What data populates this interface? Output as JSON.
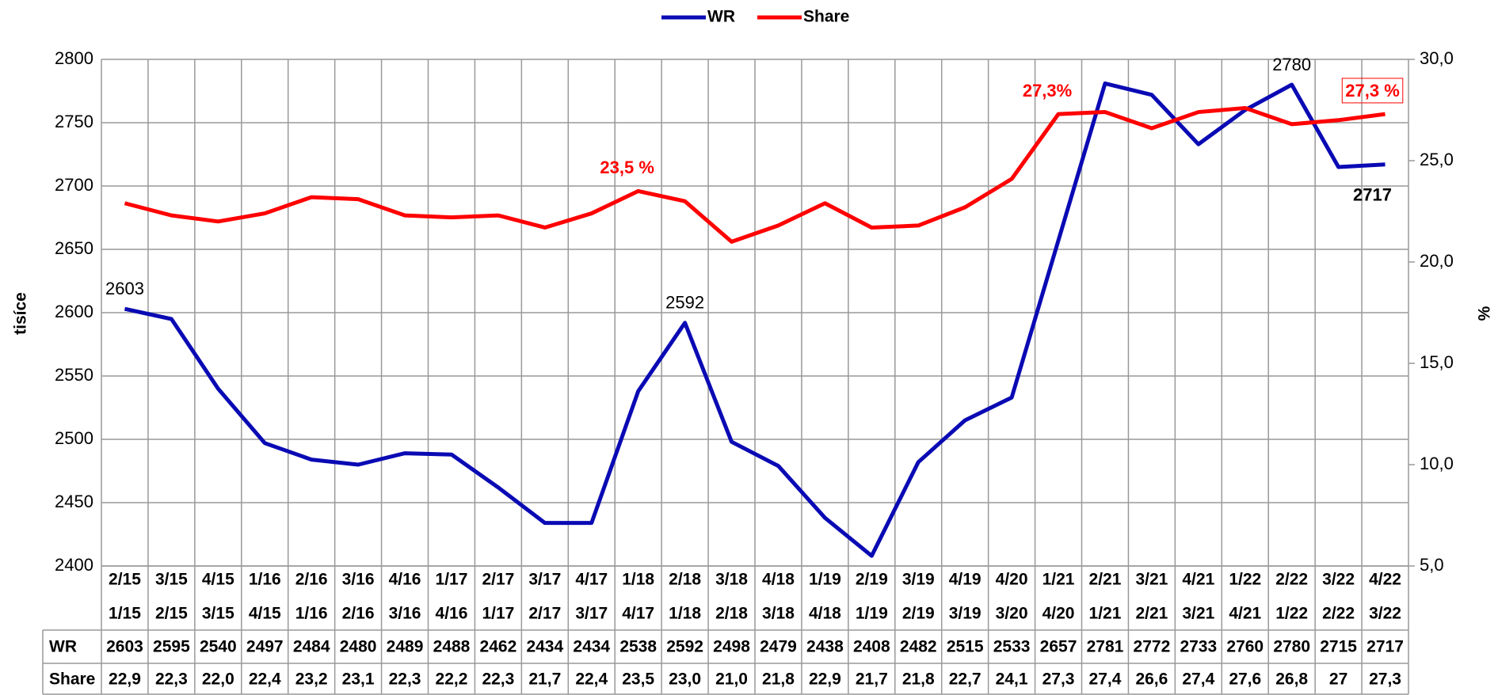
{
  "chart_data": {
    "type": "line",
    "y_label": "tisíce",
    "y2_label": "%",
    "categories": [
      [
        "2/15",
        "1/15"
      ],
      [
        "3/15",
        "2/15"
      ],
      [
        "4/15",
        "3/15"
      ],
      [
        "1/16",
        "4/15"
      ],
      [
        "2/16",
        "1/16"
      ],
      [
        "3/16",
        "2/16"
      ],
      [
        "4/16",
        "3/16"
      ],
      [
        "1/17",
        "4/16"
      ],
      [
        "2/17",
        "1/17"
      ],
      [
        "3/17",
        "2/17"
      ],
      [
        "4/17",
        "3/17"
      ],
      [
        "1/18",
        "4/17"
      ],
      [
        "2/18",
        "1/18"
      ],
      [
        "3/18",
        "2/18"
      ],
      [
        "4/18",
        "3/18"
      ],
      [
        "1/19",
        "4/18"
      ],
      [
        "2/19",
        "1/19"
      ],
      [
        "3/19",
        "2/19"
      ],
      [
        "4/19",
        "3/19"
      ],
      [
        "4/20",
        "3/20"
      ],
      [
        "1/21",
        "4/20"
      ],
      [
        "2/21",
        "1/21"
      ],
      [
        "3/21",
        "2/21"
      ],
      [
        "4/21",
        "3/21"
      ],
      [
        "1/22",
        "4/21"
      ],
      [
        "2/22",
        "1/22"
      ],
      [
        "3/22",
        "2/22"
      ],
      [
        "4/22",
        "3/22"
      ]
    ],
    "series": [
      {
        "name": "WR",
        "color": "#0a0ab4",
        "axis": "y",
        "values": [
          2603,
          2595,
          2540,
          2497,
          2484,
          2480,
          2489,
          2488,
          2462,
          2434,
          2434,
          2538,
          2592,
          2498,
          2479,
          2438,
          2408,
          2482,
          2515,
          2533,
          2657,
          2781,
          2772,
          2733,
          2760,
          2780,
          2715,
          2717
        ],
        "point_labels": [
          "2603",
          null,
          null,
          null,
          null,
          null,
          null,
          null,
          null,
          null,
          null,
          null,
          "2592",
          null,
          null,
          null,
          null,
          null,
          null,
          null,
          null,
          null,
          null,
          null,
          null,
          "2780",
          null,
          "2717"
        ]
      },
      {
        "name": "Share",
        "color": "#ff0000",
        "axis": "y2",
        "values": [
          22.9,
          22.3,
          22.0,
          22.4,
          23.2,
          23.1,
          22.3,
          22.2,
          22.3,
          21.7,
          22.4,
          23.5,
          23.0,
          21.0,
          21.8,
          22.9,
          21.7,
          21.8,
          22.7,
          24.1,
          27.3,
          27.4,
          26.6,
          27.4,
          27.6,
          26.8,
          27,
          27.3
        ],
        "value_labels": [
          "22,9",
          "22,3",
          "22,0",
          "22,4",
          "23,2",
          "23,1",
          "22,3",
          "22,2",
          "22,3",
          "21,7",
          "22,4",
          "23,5",
          "23,0",
          "21,0",
          "21,8",
          "22,9",
          "21,7",
          "21,8",
          "22,7",
          "24,1",
          "27,3",
          "27,4",
          "26,6",
          "27,4",
          "27,6",
          "26,8",
          "27",
          "27,3"
        ],
        "point_labels": [
          null,
          null,
          null,
          null,
          null,
          null,
          null,
          null,
          null,
          null,
          null,
          "23,5 %",
          null,
          null,
          null,
          null,
          null,
          null,
          null,
          null,
          "27,3%",
          null,
          null,
          null,
          null,
          null,
          null,
          "27,3 %"
        ]
      }
    ],
    "ylim": [
      2400,
      2800
    ],
    "yticks": [
      2400,
      2450,
      2500,
      2550,
      2600,
      2650,
      2700,
      2750,
      2800
    ],
    "y2lim": [
      5,
      30
    ],
    "y2ticks": [
      {
        "value": 5,
        "label": "5,0"
      },
      {
        "value": 10,
        "label": "10,0"
      },
      {
        "value": 15,
        "label": "15,0"
      },
      {
        "value": 20,
        "label": "20,0"
      },
      {
        "value": 25,
        "label": "25,0"
      },
      {
        "value": 30,
        "label": "30,0"
      }
    ],
    "grid": true,
    "legend": "top"
  }
}
